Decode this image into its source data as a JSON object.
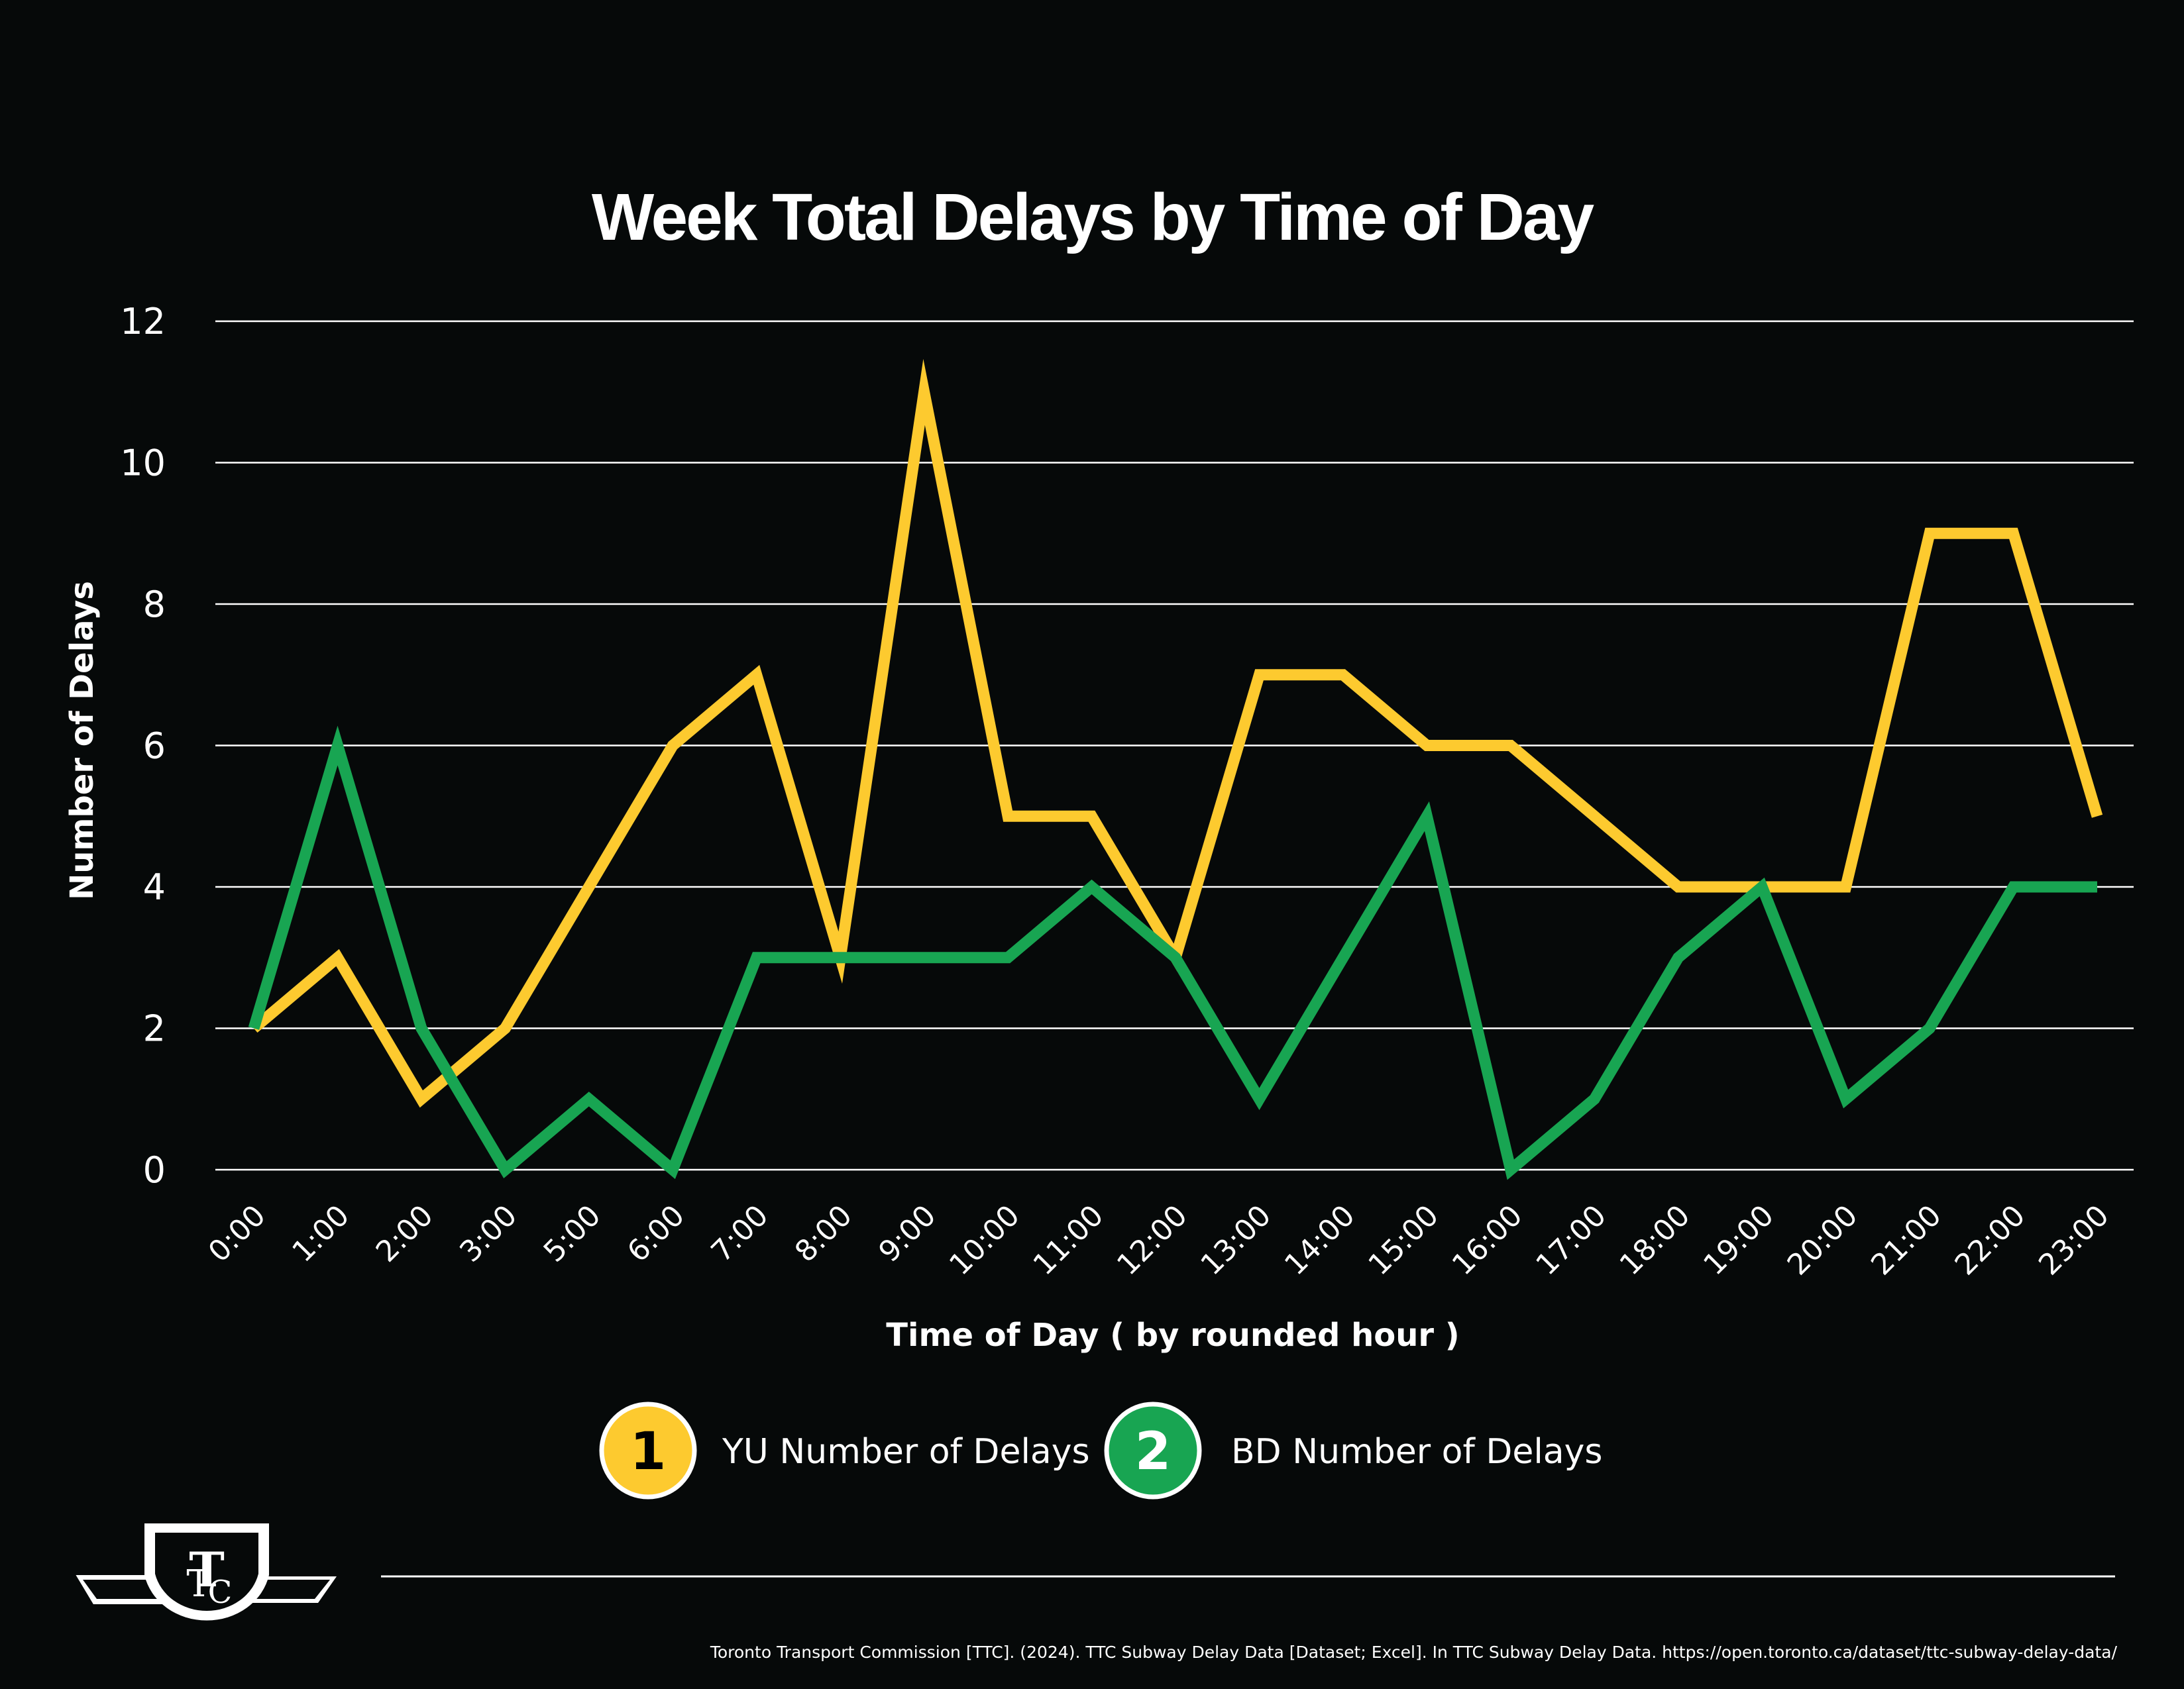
{
  "colors": {
    "background": "#060909",
    "yu": "#FDCA2F",
    "bd": "#18A552",
    "grid": "#FFFFFF",
    "text": "#FFFFFF"
  },
  "logo": {
    "name": "ttc-logo-icon",
    "text": "TTC"
  },
  "source": "Toronto Transport Commission [TTC]. (2024). TTC Subway Delay Data [Dataset; Excel]. In TTC Subway Delay Data. https://open.toronto.ca/dataset/ttc-subway-delay-data/",
  "chart_data": {
    "type": "line",
    "title": "Week Total Delays by Time of Day",
    "xlabel": "Time of Day ( by rounded hour )",
    "ylabel": "Number of Delays",
    "ylim": [
      0,
      12
    ],
    "yticks": [
      0,
      2,
      4,
      6,
      8,
      10,
      12
    ],
    "grid": true,
    "legend_position": "bottom",
    "categories": [
      "0:00",
      "1:00",
      "2:00",
      "3:00",
      "5:00",
      "6:00",
      "7:00",
      "8:00",
      "9:00",
      "10:00",
      "11:00",
      "12:00",
      "13:00",
      "14:00",
      "15:00",
      "16:00",
      "17:00",
      "18:00",
      "19:00",
      "20:00",
      "21:00",
      "22:00",
      "23:00"
    ],
    "series": [
      {
        "name": "YU Number of Delays",
        "badge": "1",
        "color": "#FDCA2F",
        "values": [
          2,
          3,
          1,
          2,
          4,
          6,
          7,
          3,
          11,
          5,
          5,
          3,
          7,
          7,
          6,
          6,
          5,
          4,
          4,
          4,
          9,
          9,
          5
        ]
      },
      {
        "name": "BD Number of Delays",
        "badge": "2",
        "color": "#18A552",
        "values": [
          2,
          6,
          2,
          0,
          1,
          0,
          3,
          3,
          3,
          3,
          4,
          3,
          1,
          3,
          5,
          0,
          1,
          3,
          4,
          1,
          2,
          4,
          4
        ]
      }
    ]
  }
}
